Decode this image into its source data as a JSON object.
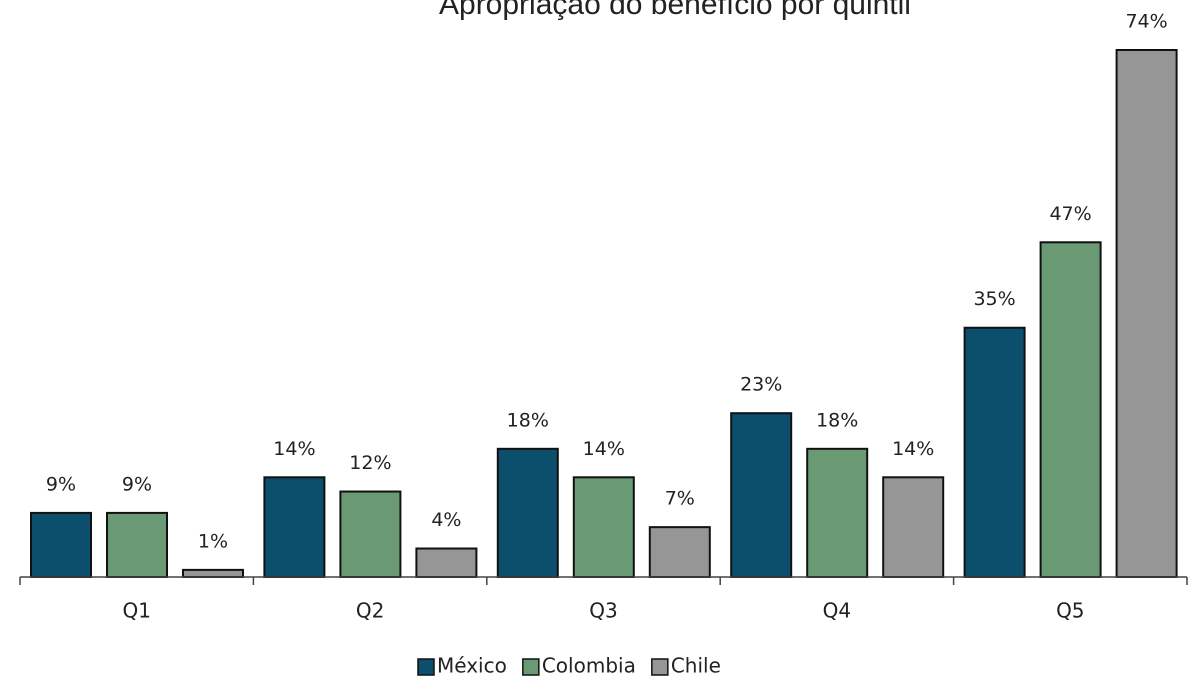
{
  "chart_data": {
    "type": "bar",
    "title": "Apropriação do benefício por quintil",
    "categories": [
      "Q1",
      "Q2",
      "Q3",
      "Q4",
      "Q5"
    ],
    "series": [
      {
        "name": "México",
        "color": "#0b4f6c",
        "values": [
          9,
          14,
          18,
          23,
          35
        ],
        "value_labels": [
          "9%",
          "14%",
          "18%",
          "23%",
          "35%"
        ]
      },
      {
        "name": "Colombia",
        "color": "#6a9a74",
        "values": [
          9,
          12,
          14,
          18,
          47
        ],
        "value_labels": [
          "9%",
          "12%",
          "14%",
          "18%",
          "47%"
        ]
      },
      {
        "name": "Chile",
        "color": "#969696",
        "values": [
          1,
          4,
          7,
          14,
          74
        ],
        "value_labels": [
          "1%",
          "4%",
          "7%",
          "14%",
          "74%"
        ]
      }
    ],
    "legend": "bottom"
  }
}
